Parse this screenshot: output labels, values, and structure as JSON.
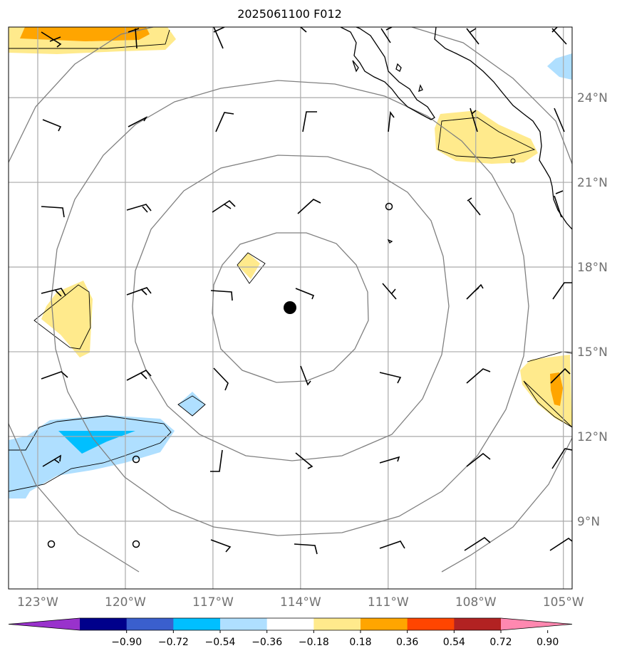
{
  "title": "2025061100 F012",
  "map": {
    "lon_range": [
      -124,
      -104.7
    ],
    "lat_range": [
      6.6,
      26.5
    ],
    "center_marker": {
      "lon": -114.5,
      "lat": 16.4
    },
    "range_rings_deg": [
      3,
      6,
      9
    ],
    "lon_ticks": [
      {
        "lon": -123,
        "label": "123°W"
      },
      {
        "lon": -120,
        "label": "120°W"
      },
      {
        "lon": -117,
        "label": "117°W"
      },
      {
        "lon": -114,
        "label": "114°W"
      },
      {
        "lon": -111,
        "label": "111°W"
      },
      {
        "lon": -108,
        "label": "108°W"
      },
      {
        "lon": -105,
        "label": "105°W"
      }
    ],
    "lat_ticks": [
      {
        "lat": 9,
        "label": "9°N"
      },
      {
        "lat": 12,
        "label": "12°N"
      },
      {
        "lat": 15,
        "label": "15°N"
      },
      {
        "lat": 18,
        "label": "18°N"
      },
      {
        "lat": 21,
        "label": "21°N"
      },
      {
        "lat": 24,
        "label": "24°N"
      }
    ]
  },
  "colorbar": {
    "colors": [
      "#9932cc",
      "#00008b",
      "#3a5fcd",
      "#00bfff",
      "#afdfff",
      "#ffffff",
      "#ffea8c",
      "#ffa500",
      "#ff4500",
      "#b22222",
      "#ff88b0"
    ],
    "tick_labels": [
      "−0.90",
      "−0.72",
      "−0.54",
      "−0.36",
      "−0.18",
      "0.18",
      "0.36",
      "0.54",
      "0.72",
      "0.90"
    ]
  }
}
